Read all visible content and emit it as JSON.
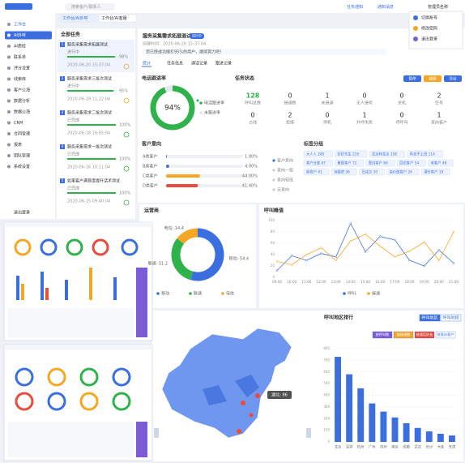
{
  "header": {
    "search": "搜索客户/联系人",
    "notice": "任务通知",
    "message": "通知消息",
    "user": "管理员名称",
    "tabs": [
      "工作台/AI外呼",
      "工作台/AI客服"
    ],
    "menu": [
      "切换账号",
      "修改密码",
      "退出登录"
    ]
  },
  "sidebar": {
    "items": [
      "工作台",
      "AI外呼",
      "AI质检",
      "联系单",
      "评分设置",
      "线索库",
      "客户公海",
      "数据分析",
      "数据公海",
      "CRM",
      "合同管理",
      "报表",
      "团队管理",
      "系统设置"
    ],
    "footer": "退出登录"
  },
  "task_list": {
    "title": "全部任务",
    "tasks": [
      {
        "no": "1",
        "name": "服务采集需求拓展测试",
        "status": "进行中",
        "progress": 98,
        "progress_label": "98%",
        "date": "2020-06-20 15:37:04"
      },
      {
        "no": "2",
        "name": "服务采集需求三批次测试",
        "status": "进行中",
        "progress": 95,
        "progress_label": "95%",
        "date": "2020-06-19 11:22:04"
      },
      {
        "no": "3",
        "name": "服务采集需求二批次测试",
        "status": "已完成",
        "progress": 100,
        "progress_label": "100%",
        "date": "2020-06-18 16:05:04"
      },
      {
        "no": "4",
        "name": "服务采集需求一批次测试",
        "status": "已完成",
        "progress": 100,
        "progress_label": "100%",
        "date": "2020-06-16 10:11:04"
      },
      {
        "no": "5",
        "name": "如果客户满意度提升话术测试",
        "status": "已完成",
        "progress": 100,
        "progress_label": "100%",
        "date": "2020-06-15 09:40:04"
      }
    ]
  },
  "detail": {
    "title": "服务采集需求拓展测试",
    "badge": "进行中",
    "meta": "创建时间：2020-06-20 15:37:04",
    "hint": "您已经成功拨打95%的用户，继续努力吧！",
    "tabs": [
      "统计",
      "任务信息",
      "通话记录",
      "跟进记录"
    ],
    "buttons": [
      "暂停",
      "编辑",
      "导出"
    ]
  },
  "task_status": {
    "title": "任务状态",
    "items": [
      {
        "value": "128",
        "label": "呼叫总数"
      },
      {
        "value": "0",
        "label": "接通数"
      },
      {
        "value": "1",
        "label": "未接通"
      },
      {
        "value": "0",
        "label": "无人接听"
      },
      {
        "value": "0",
        "label": "关机"
      },
      {
        "value": "2",
        "label": "空号"
      },
      {
        "value": "0",
        "label": "占线"
      },
      {
        "value": "2",
        "label": "拒接"
      },
      {
        "value": "0",
        "label": "停机"
      },
      {
        "value": "1",
        "label": "外呼失败"
      },
      {
        "value": "0",
        "label": "待呼叫"
      },
      {
        "value": "1",
        "label": "意向客户"
      }
    ]
  },
  "tags": {
    "title": "标签分组",
    "items": [
      "大人人 285",
      "好好先生 219",
      "北京转北京 156",
      "再也不上班 114",
      "客户分类 87",
      "重要客户 72",
      "意向客户 66",
      "回访客户 54",
      "老客户 48",
      "新客户 41",
      "待跟进 36",
      "已成交 30",
      "高价值客户 24",
      "潜在客户 19"
    ]
  },
  "bottom": {
    "tabs": [
      "呼叫地区",
      "呼叫时段"
    ],
    "buttons": [
      "按呼叫数",
      "按接通数",
      "按通话时长",
      "按意向客户"
    ],
    "tooltip": "湖北: 86"
  },
  "chart_data": [
    {
      "type": "pie",
      "title": "电话跟进率",
      "categories": [
        "电话跟进率",
        "未跟进率"
      ],
      "values": [
        94,
        6
      ],
      "colors": [
        "#2fb24a",
        "#e3e6ec"
      ],
      "center_label": "94%"
    },
    {
      "type": "hbar",
      "title": "客户意向",
      "categories": [
        "A类客户",
        "B类客户",
        "C类客户",
        "D类客户"
      ],
      "values": [
        1,
        4,
        44,
        41.4
      ],
      "value_labels": [
        "1.00%",
        "4.00%",
        "44.00%",
        "41.40%"
      ],
      "colors": [
        "#3b6fe0",
        "#3b6fe0",
        "#f5a623",
        "#e74c3c"
      ],
      "xlim": [
        0,
        100
      ],
      "legend": [
        "客户意向",
        "意向一般",
        "意向较低",
        "无意向"
      ]
    },
    {
      "type": "pie",
      "title": "运营商",
      "categories": [
        "移动",
        "联通",
        "电信"
      ],
      "values": [
        54.4,
        31.2,
        14.4
      ],
      "value_labels": [
        "移动: 54.4",
        "联通: 31.2",
        "电信: 14.4"
      ],
      "colors": [
        "#3b6fe0",
        "#2fb24a",
        "#f5a623"
      ]
    },
    {
      "type": "line",
      "title": "呼叫峰值",
      "categories": [
        "09:00",
        "10:00",
        "11:00",
        "12:00",
        "13:00",
        "14:00",
        "15:00",
        "16:00",
        "17:00",
        "18:00",
        "19:00",
        "20:00",
        "21:00"
      ],
      "series": [
        {
          "name": "呼叫",
          "color": "#3b6fe0",
          "values": [
            12,
            38,
            30,
            42,
            36,
            95,
            45,
            72,
            66,
            30,
            20,
            48,
            25
          ]
        },
        {
          "name": "接通",
          "color": "#f5a623",
          "values": [
            28,
            22,
            40,
            52,
            30,
            64,
            76,
            55,
            36,
            46,
            62,
            30,
            80
          ]
        }
      ],
      "ylim": [
        0,
        100
      ],
      "yticks": [
        0,
        20,
        40,
        60,
        80,
        100
      ]
    },
    {
      "type": "bar",
      "title": "呼叫地区排行",
      "categories": [
        "北京",
        "深圳",
        "杭州",
        "广州",
        "苏州",
        "南京",
        "成都",
        "武汉",
        "长沙",
        "大连",
        "天津"
      ],
      "values": [
        730,
        580,
        460,
        330,
        260,
        210,
        160,
        120,
        90,
        70,
        55
      ],
      "color": "#3b6fe0",
      "ylim": [
        0,
        800
      ],
      "yticks": [
        0,
        100,
        200,
        300,
        400,
        500,
        600,
        700,
        800
      ]
    }
  ]
}
